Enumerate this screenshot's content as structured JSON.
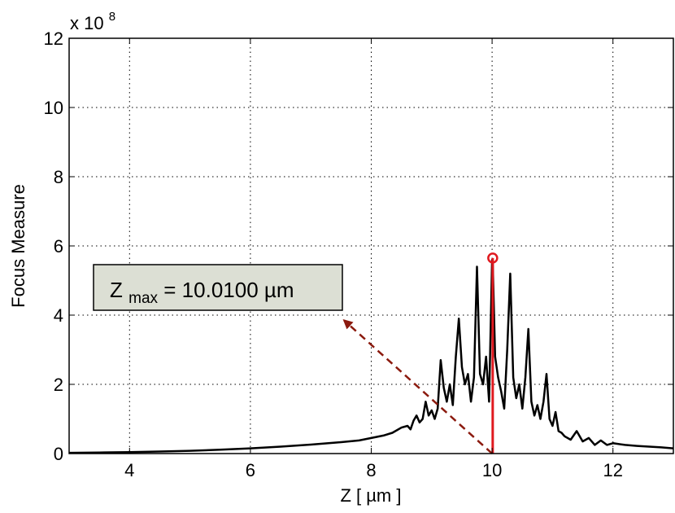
{
  "chart_data": {
    "type": "line",
    "xlabel": "Z [ µm ]",
    "ylabel": "Focus Measure",
    "y_exponent_label": "x 10",
    "y_exponent_power": "8",
    "xlim": [
      3,
      13
    ],
    "ylim": [
      0,
      12
    ],
    "xticks": [
      4,
      6,
      8,
      10,
      12
    ],
    "yticks": [
      0,
      2,
      4,
      6,
      8,
      10,
      12
    ],
    "grid": true,
    "grid_style": "dotted",
    "series": [
      {
        "color": "#000000",
        "x": [
          3.0,
          3.5,
          4.0,
          4.5,
          5.0,
          5.5,
          6.0,
          6.5,
          7.0,
          7.5,
          7.8,
          8.0,
          8.2,
          8.35,
          8.5,
          8.6,
          8.65,
          8.7,
          8.75,
          8.8,
          8.85,
          8.9,
          8.95,
          9.0,
          9.05,
          9.1,
          9.15,
          9.2,
          9.25,
          9.3,
          9.35,
          9.4,
          9.45,
          9.5,
          9.55,
          9.6,
          9.65,
          9.7,
          9.75,
          9.8,
          9.85,
          9.9,
          9.95,
          10.0,
          10.01,
          10.05,
          10.1,
          10.15,
          10.2,
          10.25,
          10.3,
          10.35,
          10.4,
          10.45,
          10.5,
          10.55,
          10.6,
          10.65,
          10.7,
          10.75,
          10.8,
          10.85,
          10.9,
          10.95,
          11.0,
          11.05,
          11.1,
          11.15,
          11.2,
          11.3,
          11.4,
          11.5,
          11.6,
          11.7,
          11.8,
          11.9,
          12.0,
          12.2,
          12.4,
          12.6,
          12.8,
          13.0
        ],
        "y": [
          0.02,
          0.03,
          0.04,
          0.06,
          0.08,
          0.11,
          0.15,
          0.2,
          0.26,
          0.33,
          0.38,
          0.45,
          0.52,
          0.6,
          0.75,
          0.8,
          0.7,
          0.95,
          1.1,
          0.9,
          1.0,
          1.5,
          1.1,
          1.25,
          1.0,
          1.3,
          2.7,
          1.9,
          1.5,
          2.0,
          1.4,
          2.8,
          3.9,
          2.5,
          2.0,
          2.3,
          1.5,
          2.2,
          5.4,
          2.3,
          2.0,
          2.8,
          1.5,
          5.6,
          5.6,
          2.8,
          2.2,
          1.8,
          1.3,
          3.0,
          5.2,
          2.2,
          1.6,
          2.0,
          1.3,
          2.2,
          3.6,
          1.5,
          1.1,
          1.4,
          1.0,
          1.5,
          2.3,
          1.0,
          0.8,
          1.2,
          0.65,
          0.6,
          0.5,
          0.4,
          0.65,
          0.35,
          0.45,
          0.25,
          0.38,
          0.25,
          0.3,
          0.25,
          0.22,
          0.2,
          0.18,
          0.15
        ]
      }
    ],
    "marker": {
      "x": 10.01,
      "y": 5.65,
      "color": "#e0191f"
    },
    "peak_line": {
      "x": 10.01,
      "y0": 0,
      "y1": 5.65,
      "color": "#e0191f"
    },
    "arrow": {
      "from": [
        10.0,
        0.0
      ],
      "to": [
        7.55,
        3.85
      ],
      "color": "#8b1a0e"
    },
    "annotation": {
      "prefix": "Z",
      "subscript": "max",
      "value_text": " = 10.0100 µm",
      "background": "#dcdfd4"
    }
  }
}
